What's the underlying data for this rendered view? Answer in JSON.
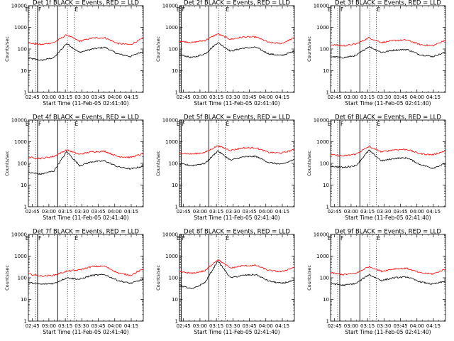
{
  "figure": {
    "colors": {
      "events": "#000000",
      "lld": "#ff0000",
      "background": "#ffffff"
    }
  },
  "chart_data": [
    {
      "type": "line",
      "title": "Det 1f BLACK = Events, RED = LLD",
      "xlabel": "Start Time (11-Feb-05 02:41:40)",
      "ylabel": "Counts/sec",
      "x_ticks": [
        "02:45",
        "03:00",
        "03:15",
        "03:30",
        "03:45",
        "04:00",
        "04:15"
      ],
      "y_ticks": [
        "1",
        "10",
        "100",
        "1000",
        "10000"
      ],
      "ylim": [
        1,
        10000
      ],
      "xlim_minutes": [
        -3.67,
        101
      ],
      "scale": "log",
      "markers": [
        "E",
        "F",
        "E"
      ],
      "vlines_dotted": [
        -7,
        2.8,
        32,
        38
      ],
      "vlines_solid": [
        4.7,
        23
      ],
      "series": [
        {
          "name": "Events",
          "color": "#000000",
          "values": [
            38,
            30,
            40,
            180,
            70,
            100,
            120,
            60,
            45,
            80
          ]
        },
        {
          "name": "LLD",
          "color": "#ff0000",
          "values": [
            190,
            160,
            200,
            450,
            230,
            320,
            330,
            180,
            160,
            320
          ]
        }
      ]
    },
    {
      "type": "line",
      "title": "Det 2f BLACK = Events, RED = LLD",
      "xlabel": "Start Time (11-Feb-05 02:41:40)",
      "ylabel": "Counts/sec",
      "x_ticks": [
        "02:45",
        "03:00",
        "03:15",
        "03:30",
        "03:45",
        "04:00",
        "04:15"
      ],
      "y_ticks": [
        "1",
        "10",
        "100",
        "1000",
        "10000"
      ],
      "ylim": [
        1,
        10000
      ],
      "xlim_minutes": [
        -3.67,
        101
      ],
      "scale": "log",
      "markers": [
        "E",
        "F",
        "E"
      ],
      "vlines_dotted": [
        -7,
        -3,
        32,
        38
      ],
      "vlines_solid": [
        -2,
        23
      ],
      "series": [
        {
          "name": "Events",
          "color": "#000000",
          "values": [
            55,
            40,
            60,
            200,
            80,
            110,
            120,
            60,
            50,
            80
          ]
        },
        {
          "name": "LLD",
          "color": "#ff0000",
          "values": [
            230,
            200,
            250,
            500,
            280,
            360,
            360,
            200,
            180,
            330
          ]
        }
      ]
    },
    {
      "type": "line",
      "title": "Det 3f BLACK = Events, RED = LLD",
      "xlabel": "Start Time (11-Feb-05 02:41:40)",
      "ylabel": "Counts/sec",
      "x_ticks": [
        "02:45",
        "03:00",
        "03:15",
        "03:30",
        "03:45",
        "04:00",
        "04:15"
      ],
      "y_ticks": [
        "1",
        "10",
        "100",
        "1000",
        "10000"
      ],
      "ylim": [
        1,
        10000
      ],
      "xlim_minutes": [
        -3.67,
        101
      ],
      "scale": "log",
      "markers": [
        "E",
        "F",
        "E"
      ],
      "vlines_dotted": [
        -7,
        2.8,
        32,
        38
      ],
      "vlines_solid": [
        4.7,
        23
      ],
      "series": [
        {
          "name": "Events",
          "color": "#000000",
          "values": [
            45,
            40,
            50,
            130,
            70,
            90,
            95,
            55,
            45,
            70
          ]
        },
        {
          "name": "LLD",
          "color": "#ff0000",
          "values": [
            160,
            140,
            170,
            330,
            200,
            250,
            260,
            160,
            140,
            260
          ]
        }
      ]
    },
    {
      "type": "line",
      "title": "Det 4f BLACK = Events, RED = LLD",
      "xlabel": "Start Time (11-Feb-05 02:41:40)",
      "ylabel": "Counts/sec",
      "x_ticks": [
        "02:45",
        "03:00",
        "03:15",
        "03:30",
        "03:45",
        "04:00",
        "04:15"
      ],
      "y_ticks": [
        "1",
        "10",
        "100",
        "1000",
        "10000"
      ],
      "ylim": [
        1,
        10000
      ],
      "xlim_minutes": [
        -3.67,
        101
      ],
      "scale": "log",
      "markers": [
        "E",
        "F",
        "E"
      ],
      "vlines_dotted": [
        -7,
        2.8,
        32,
        38
      ],
      "vlines_solid": [
        4.7,
        23
      ],
      "series": [
        {
          "name": "Events",
          "color": "#000000",
          "values": [
            38,
            32,
            45,
            350,
            80,
            120,
            130,
            70,
            55,
            75
          ]
        },
        {
          "name": "LLD",
          "color": "#ff0000",
          "values": [
            190,
            170,
            210,
            420,
            260,
            350,
            360,
            210,
            190,
            280
          ]
        }
      ]
    },
    {
      "type": "line",
      "title": "Det 5f BLACK = Events, RED = LLD",
      "xlabel": "Start Time (11-Feb-05 02:41:40)",
      "ylabel": "Counts/sec",
      "x_ticks": [
        "02:45",
        "03:00",
        "03:15",
        "03:30",
        "03:45",
        "04:00",
        "04:15"
      ],
      "y_ticks": [
        "1",
        "10",
        "100",
        "1000",
        "10000"
      ],
      "ylim": [
        1,
        10000
      ],
      "xlim_minutes": [
        -3.67,
        101
      ],
      "scale": "log",
      "markers": [
        "E",
        "F",
        "E"
      ],
      "vlines_dotted": [
        -7,
        -3,
        32,
        38
      ],
      "vlines_solid": [
        -2,
        23
      ],
      "series": [
        {
          "name": "Events",
          "color": "#000000",
          "values": [
            95,
            80,
            100,
            380,
            140,
            200,
            210,
            110,
            90,
            150
          ]
        },
        {
          "name": "LLD",
          "color": "#ff0000",
          "values": [
            300,
            270,
            320,
            650,
            400,
            520,
            520,
            320,
            300,
            430
          ]
        }
      ]
    },
    {
      "type": "line",
      "title": "Det 6f BLACK = Events, RED = LLD",
      "xlabel": "Start Time (11-Feb-05 02:41:40)",
      "ylabel": "Counts/sec",
      "x_ticks": [
        "02:45",
        "03:00",
        "03:15",
        "03:30",
        "03:45",
        "04:00",
        "04:15"
      ],
      "y_ticks": [
        "1",
        "10",
        "100",
        "1000",
        "10000"
      ],
      "ylim": [
        1,
        10000
      ],
      "xlim_minutes": [
        -3.67,
        101
      ],
      "scale": "log",
      "markers": [
        "E",
        "F",
        "E"
      ],
      "vlines_dotted": [
        -7,
        2.8,
        32,
        38
      ],
      "vlines_solid": [
        4.7,
        23
      ],
      "series": [
        {
          "name": "Events",
          "color": "#000000",
          "values": [
            75,
            65,
            80,
            400,
            130,
            170,
            180,
            90,
            60,
            100
          ]
        },
        {
          "name": "LLD",
          "color": "#ff0000",
          "values": [
            250,
            220,
            270,
            600,
            340,
            430,
            440,
            280,
            250,
            380
          ]
        }
      ]
    },
    {
      "type": "line",
      "title": "Det 7f BLACK = Events, RED = LLD",
      "xlabel": "Start Time (11-Feb-05 02:41:40)",
      "ylabel": "Counts/sec",
      "x_ticks": [
        "02:45",
        "03:00",
        "03:15",
        "03:30",
        "03:45",
        "04:00",
        "04:15"
      ],
      "y_ticks": [
        "1",
        "10",
        "100",
        "1000",
        "10000"
      ],
      "ylim": [
        1,
        10000
      ],
      "xlim_minutes": [
        -3.67,
        101
      ],
      "scale": "log",
      "markers": [
        "E",
        "F",
        "E"
      ],
      "vlines_dotted": [
        -7,
        2.8,
        32,
        38
      ],
      "vlines_solid": [
        4.7,
        23
      ],
      "series": [
        {
          "name": "Events",
          "color": "#000000",
          "values": [
            60,
            50,
            55,
            100,
            85,
            130,
            140,
            75,
            55,
            85
          ]
        },
        {
          "name": "LLD",
          "color": "#ff0000",
          "values": [
            150,
            120,
            130,
            200,
            230,
            330,
            340,
            170,
            130,
            250
          ]
        }
      ]
    },
    {
      "type": "line",
      "title": "Det 8f BLACK = Events, RED = LLD",
      "xlabel": "Start Time (11-Feb-05 02:41:40)",
      "ylabel": "Counts/sec",
      "x_ticks": [
        "02:45",
        "03:00",
        "03:15",
        "03:30",
        "03:45",
        "04:00",
        "04:15"
      ],
      "y_ticks": [
        "1",
        "10",
        "100",
        "1000",
        "10000"
      ],
      "ylim": [
        1,
        10000
      ],
      "xlim_minutes": [
        -3.67,
        101
      ],
      "scale": "log",
      "markers": [
        "E",
        "F",
        "E"
      ],
      "vlines_dotted": [
        -7,
        -3,
        32,
        38
      ],
      "vlines_solid": [
        -2,
        23
      ],
      "series": [
        {
          "name": "Events",
          "color": "#000000",
          "values": [
            45,
            30,
            60,
            600,
            100,
            130,
            140,
            70,
            55,
            75
          ]
        },
        {
          "name": "LLD",
          "color": "#ff0000",
          "values": [
            190,
            160,
            210,
            700,
            280,
            360,
            370,
            220,
            190,
            310
          ]
        }
      ]
    },
    {
      "type": "line",
      "title": "Det 9f BLACK = Events, RED = LLD",
      "xlabel": "Start Time (11-Feb-05 02:41:40)",
      "ylabel": "Counts/sec",
      "x_ticks": [
        "02:45",
        "03:00",
        "03:15",
        "03:30",
        "03:45",
        "04:00",
        "04:15"
      ],
      "y_ticks": [
        "1",
        "10",
        "100",
        "1000",
        "10000"
      ],
      "ylim": [
        1,
        10000
      ],
      "xlim_minutes": [
        -3.67,
        101
      ],
      "scale": "log",
      "markers": [
        "E",
        "F",
        "E"
      ],
      "vlines_dotted": [
        -7,
        2.8,
        32,
        38
      ],
      "vlines_solid": [
        4.7,
        23
      ],
      "series": [
        {
          "name": "Events",
          "color": "#000000",
          "values": [
            55,
            45,
            55,
            140,
            75,
            100,
            110,
            65,
            50,
            70
          ]
        },
        {
          "name": "LLD",
          "color": "#ff0000",
          "values": [
            170,
            140,
            160,
            330,
            200,
            260,
            270,
            170,
            150,
            250
          ]
        }
      ]
    }
  ]
}
